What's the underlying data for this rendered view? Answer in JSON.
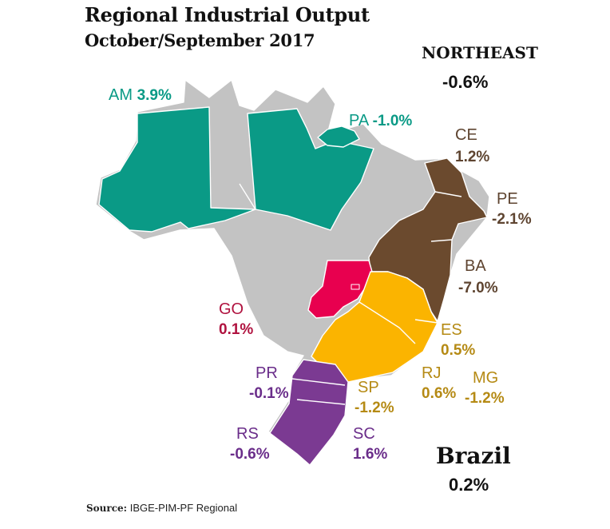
{
  "title": "Regional Industrial Output",
  "subtitle": "October/September 2017",
  "source_label": "Source:",
  "source_text": "IBGE-PIM-PF Regional",
  "colors": {
    "north": "#0a9a86",
    "northeast": "#6b4a2e",
    "centerwest": "#e8004f",
    "southeast": "#fbb400",
    "south": "#7b3a92",
    "other": "#c3c3c3"
  },
  "regions": {
    "am": {
      "name": "AM",
      "value": "3.9%"
    },
    "pa": {
      "name": "PA",
      "value": "-1.0%"
    },
    "ce": {
      "name": "CE",
      "value": "1.2%"
    },
    "pe": {
      "name": "PE",
      "value": "-2.1%"
    },
    "ba": {
      "name": "BA",
      "value": "-7.0%"
    },
    "go": {
      "name": "GO",
      "value": "0.1%"
    },
    "es": {
      "name": "ES",
      "value": "0.5%"
    },
    "rj": {
      "name": "RJ",
      "value": "0.6%"
    },
    "mg": {
      "name": "MG",
      "value": "-1.2%"
    },
    "sp": {
      "name": "SP",
      "value": "-1.2%"
    },
    "pr": {
      "name": "PR",
      "value": "-0.1%"
    },
    "rs": {
      "name": "RS",
      "value": "-0.6%"
    },
    "sc": {
      "name": "SC",
      "value": "1.6%"
    }
  },
  "northeast": {
    "label": "NORTHEAST",
    "value": "-0.6%"
  },
  "brazil": {
    "label": "Brazil",
    "value": "0.2%"
  }
}
